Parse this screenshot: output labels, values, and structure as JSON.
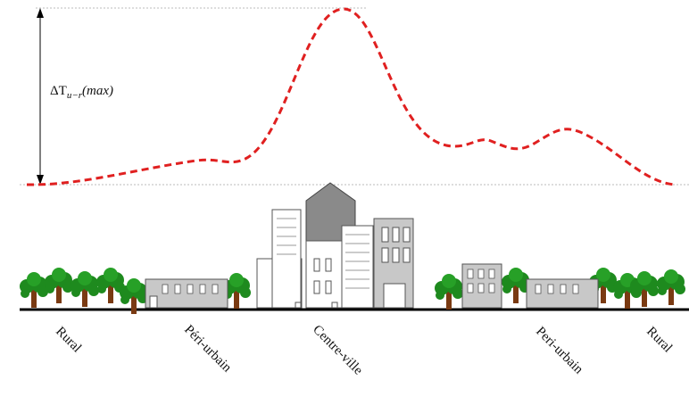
{
  "delta_label": {
    "main": "ΔT",
    "subscript": "u−r",
    "suffix": "(max)"
  },
  "zones": [
    "Rural",
    "Péri-urbain",
    "Centre-ville",
    "Peri-urbain",
    "Rural"
  ]
}
